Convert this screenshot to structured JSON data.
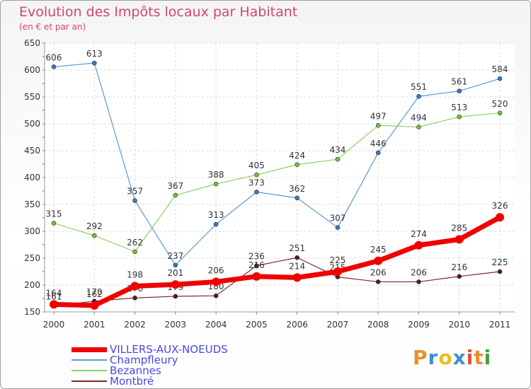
{
  "header": {
    "title": "Evolution des Impôts locaux par Habitant",
    "subtitle": "(en € et par an)"
  },
  "logo": {
    "text": "Proxiti",
    "colors": [
      "#e8902a",
      "#3a90d0",
      "#e8c020",
      "#3a90d0",
      "#e05030",
      "#e8902a",
      "#40a040"
    ]
  },
  "chart_data": {
    "type": "line",
    "title": "Evolution des Impôts locaux par Habitant",
    "subtitle": "(en € et par an)",
    "xlabel": "",
    "ylabel": "",
    "ylim": [
      150,
      650
    ],
    "yticks": [
      150,
      200,
      250,
      300,
      350,
      400,
      450,
      500,
      550,
      600,
      650
    ],
    "grid": true,
    "legend_position": "bottom-left",
    "x": [
      "2000",
      "2001",
      "2002",
      "2003",
      "2004",
      "2005",
      "2006",
      "2007",
      "2008",
      "2009",
      "2010",
      "2011"
    ],
    "series": [
      {
        "name": "Champfleury",
        "color": "#5a9ad0",
        "marker": "#3a7ac0",
        "width": 1.2,
        "radius": 3,
        "values": [
          606,
          613,
          357,
          237,
          313,
          373,
          362,
          307,
          446,
          551,
          561,
          584
        ],
        "labels": [
          "606",
          "613",
          "357",
          "237",
          "313",
          "373",
          "362",
          "307",
          "446",
          "551",
          "561",
          "584"
        ]
      },
      {
        "name": "Bezannes",
        "color": "#90d060",
        "marker": "#70c040",
        "width": 1.2,
        "radius": 3,
        "values": [
          315,
          292,
          262,
          367,
          388,
          405,
          424,
          434,
          497,
          494,
          513,
          520
        ],
        "labels": [
          "315",
          "292",
          "262",
          "367",
          "388",
          "405",
          "424",
          "434",
          "497",
          "494",
          "513",
          "520"
        ]
      },
      {
        "name": "Montbré",
        "color": "#7a2a2a",
        "marker": "#5a1a1a",
        "width": 1.2,
        "radius": 3,
        "values": [
          161,
          170,
          176,
          179,
          180,
          236,
          251,
          215,
          206,
          206,
          216,
          225
        ],
        "labels": [
          "161",
          "170",
          "176",
          "179",
          "180",
          "236",
          "251",
          "215",
          "206",
          "206",
          "216",
          "225"
        ]
      },
      {
        "name": "VILLERS-AUX-NOEUDS",
        "color": "#f00000",
        "marker": "#f00000",
        "width": 7,
        "radius": 6,
        "values": [
          164,
          162,
          198,
          201,
          206,
          216,
          214,
          225,
          245,
          274,
          285,
          326
        ],
        "labels": [
          "164",
          "162",
          "198",
          "201",
          "206",
          "216",
          "214",
          "225",
          "245",
          "274",
          "285",
          "326"
        ]
      }
    ],
    "legend": [
      {
        "name": "VILLERS-AUX-NOEUDS",
        "color": "#f00000",
        "thickness": 7
      },
      {
        "name": "Champfleury",
        "color": "#5a9ad0",
        "thickness": 2
      },
      {
        "name": "Bezannes",
        "color": "#90d060",
        "thickness": 2
      },
      {
        "name": "Montbré",
        "color": "#7a2a2a",
        "thickness": 2
      }
    ]
  }
}
